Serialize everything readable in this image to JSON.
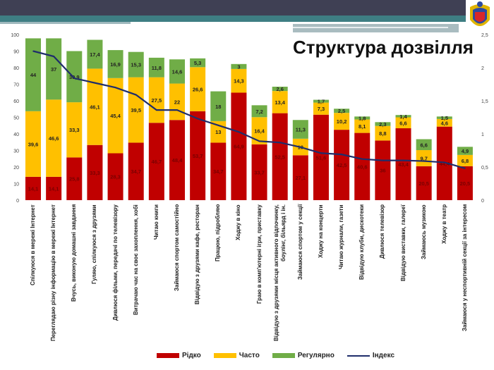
{
  "chart_data": {
    "type": "bar",
    "stacked": true,
    "title": "Структура дозвілля",
    "categories": [
      "Спілкуюся в мережі Інтернет",
      "Переглядаю різну інформацію в мережі Інтернет",
      "Вчусь, виконую домашні завдання",
      "Гуляю, спілкуюся з друзями",
      "Дивлюся фільми, передачі по телевізору",
      "Витрачаю час на своє захоплення, хобі",
      "Читаю книги",
      "Займаюся спортом самостійно",
      "Відвідую з друзями кафе, ресторан",
      "Працюю, підробляю",
      "Ходжу в кіно",
      "Граю в комп'ютерні ігри, приставку",
      "Відвідую з друзями місця активного відпочинку, боулінг, більярд і ін.",
      "Займаюся спортом у секції",
      "Ходжу на концерти",
      "Читаю журнали, газети",
      "Відвідую клуби, дискотеки",
      "Дивлюся телевізор",
      "Відвідую виставки, галереї",
      "Займаюсь музикою",
      "Ходжу в театр",
      "Займаюся у неспортивній секції за інтересом"
    ],
    "series": [
      {
        "name": "Рідко",
        "color": "#c00000",
        "values": [
          14.1,
          14.1,
          25.8,
          33.3,
          28.3,
          34.7,
          46.7,
          48.4,
          53.7,
          34.7,
          64.9,
          33.7,
          52.5,
          27.1,
          51.6,
          42.5,
          40.6,
          36,
          43.4,
          20.5,
          44.4,
          20.5
        ]
      },
      {
        "name": "Часто",
        "color": "#ffc000",
        "values": [
          39.6,
          46.6,
          33.3,
          46.1,
          45.4,
          39.5,
          27.5,
          22,
          26.6,
          13,
          14.3,
          16.4,
          13.4,
          10,
          7.3,
          10.2,
          8.1,
          8.8,
          6.6,
          9.7,
          4.6,
          6.8
        ]
      },
      {
        "name": "Регулярно",
        "color": "#70ad47",
        "values": [
          44,
          37,
          30.9,
          17.4,
          16.9,
          15.3,
          11.8,
          14.6,
          5.3,
          18,
          3,
          7.2,
          2.6,
          11.3,
          1.7,
          2.5,
          1.8,
          2.3,
          1.4,
          6.6,
          1.5,
          4.9
        ]
      }
    ],
    "line_series": {
      "name": "Індекс",
      "color": "#1f2d6b",
      "axis": "secondary",
      "values": [
        2.25,
        2.17,
        1.84,
        1.77,
        1.7,
        1.59,
        1.36,
        1.36,
        1.23,
        1.13,
        1.03,
        0.89,
        0.87,
        0.8,
        0.71,
        0.69,
        0.62,
        0.6,
        0.6,
        0.59,
        0.57,
        0.48
      ]
    },
    "ylim": [
      0,
      100
    ],
    "yticks": [
      "0",
      "10",
      "20",
      "30",
      "40",
      "50",
      "60",
      "70",
      "80",
      "90",
      "100"
    ],
    "y2lim": [
      0,
      2.5
    ],
    "y2ticks": [
      "0",
      "0,5",
      "1",
      "1,5",
      "2",
      "2,5"
    ],
    "legend_position": "bottom",
    "grid": false
  }
}
